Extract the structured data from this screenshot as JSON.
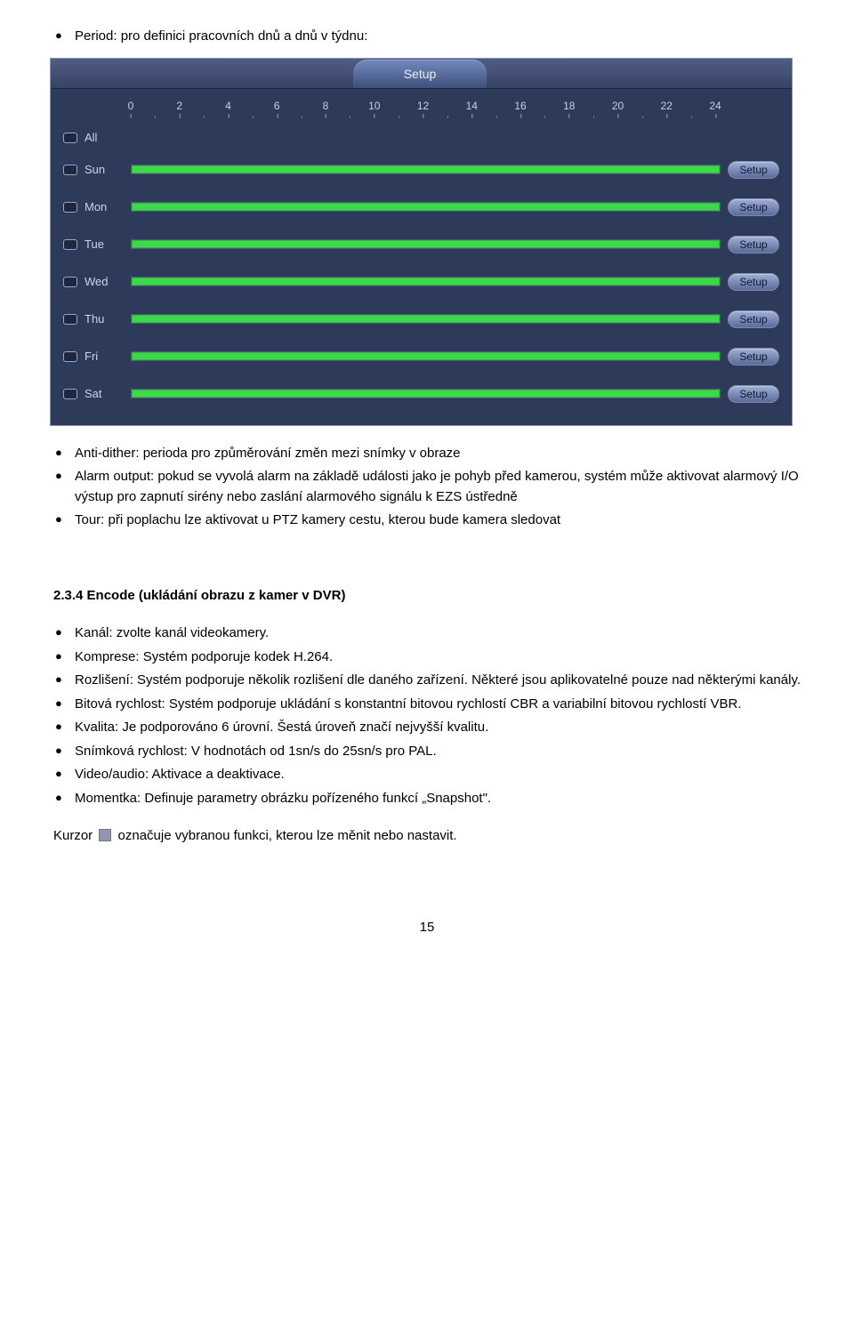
{
  "lead_bullet": "Period: pro definici pracovních dnů a dnů v týdnu:",
  "dvr": {
    "tab_label": "Setup",
    "ruler_start": 0,
    "ruler_end": 24,
    "ruler_step": 2,
    "ruler_color": "#c6cfe6",
    "bar_color": "#3ed94a",
    "panel_bg": "#2d3a59",
    "first_row_label": "All",
    "days": [
      "Sun",
      "Mon",
      "Tue",
      "Wed",
      "Thu",
      "Fri",
      "Sat"
    ],
    "setup_btn_label": "Setup"
  },
  "after_panel_bullets": [
    "Anti-dither: perioda pro způměrování změn mezi snímky v obraze",
    "Alarm output: pokud se vyvolá alarm na základě události jako je pohyb před kamerou, systém může aktivovat alarmový I/O výstup pro zapnutí sirény nebo zaslání alarmového signálu k EZS ústředně",
    "Tour: při poplachu lze aktivovat u PTZ kamery cestu, kterou bude kamera sledovat"
  ],
  "section_heading": "2.3.4  Encode (ukládání obrazu z kamer v DVR)",
  "encode_bullets": [
    "Kanál: zvolte kanál videokamery.",
    "Komprese: Systém podporuje kodek H.264.",
    "Rozlišení: Systém podporuje několik rozlišení dle daného zařízení. Některé jsou aplikovatelné pouze nad některými kanály.",
    "Bitová rychlost: Systém podporuje ukládání s konstantní bitovou rychlostí CBR a variabilní bitovou rychlostí VBR.",
    "Kvalita: Je podporováno 6 úrovní. Šestá úroveň značí nejvyšší kvalitu.",
    "Snímková rychlost: V hodnotách od 1sn/s do 25sn/s pro PAL.",
    "Video/audio: Aktivace a deaktivace.",
    "Momentka: Definuje parametry obrázku pořízeného funkcí „Snapshot\"."
  ],
  "cursor_line_pre": "Kurzor ",
  "cursor_line_post": " označuje vybranou funkci, kterou lze měnit nebo nastavit.",
  "page_number": "15"
}
